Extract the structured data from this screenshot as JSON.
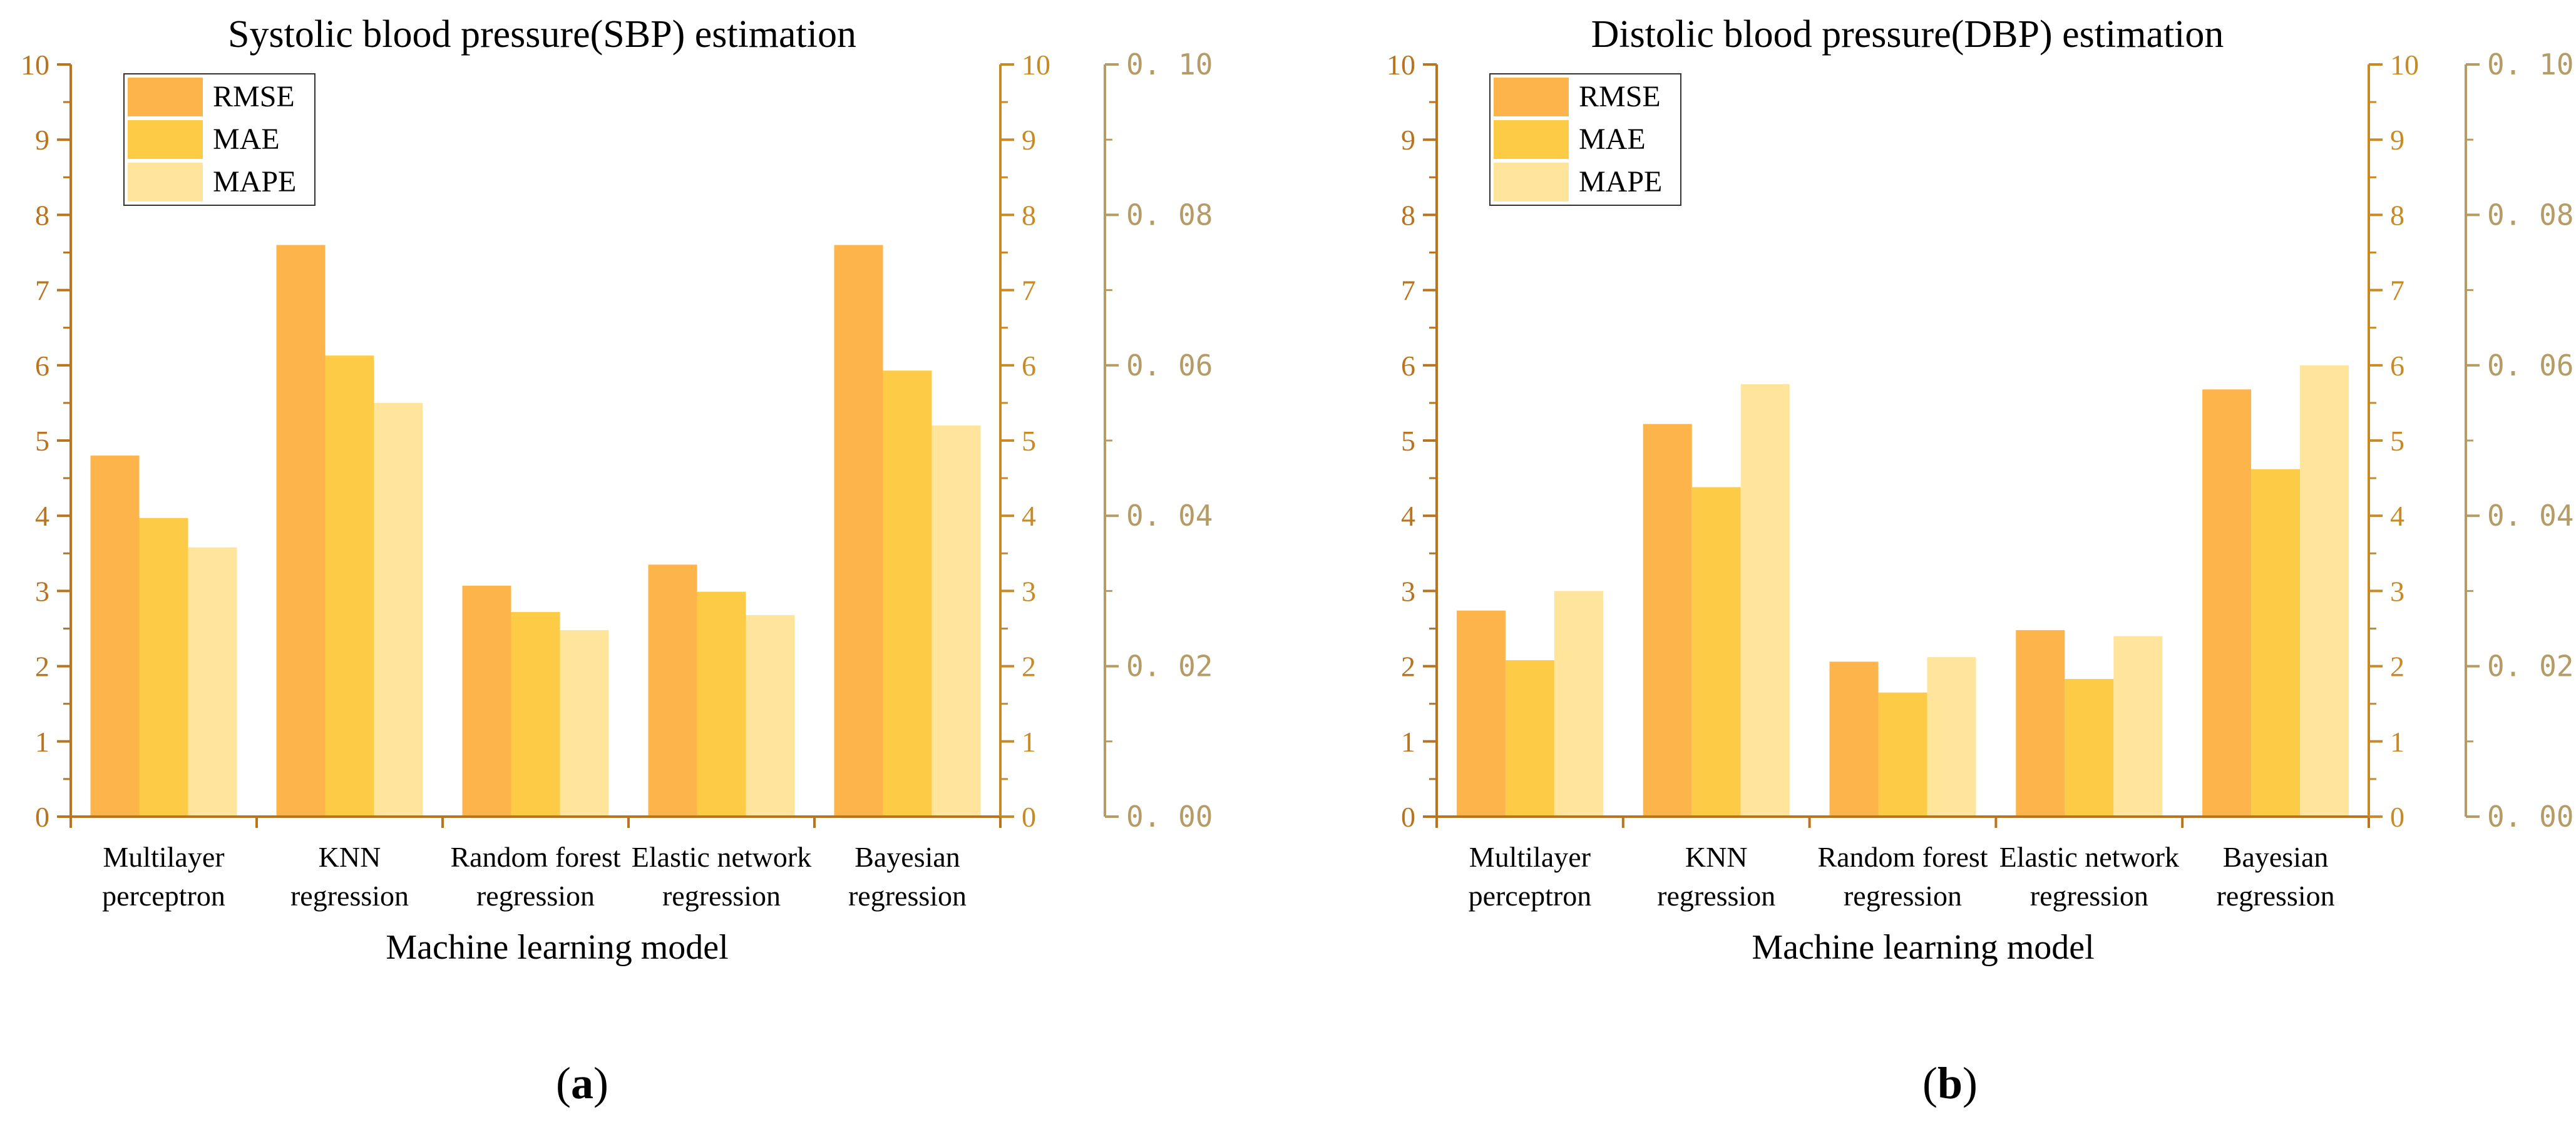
{
  "colors": {
    "rmse": "#FDB44A",
    "mae": "#FECB47",
    "mape": "#FFE49B",
    "axis_left": "#B8741E",
    "axis_mid": "#C88A24",
    "axis_right": "#B59B66",
    "text": "#000000"
  },
  "chart_data": [
    {
      "type": "bar",
      "title": "Systolic blood pressure(SBP) estimation",
      "panel_label": "(a)",
      "panel_label_text": "a",
      "xlabel": "Machine learning model",
      "ylabel": "",
      "categories": [
        [
          "Multilayer",
          "perceptron"
        ],
        [
          "KNN",
          "regression"
        ],
        [
          "Random forest",
          "regression"
        ],
        [
          "Elastic network",
          "regression"
        ],
        [
          "Bayesian",
          "regression"
        ]
      ],
      "series": [
        {
          "name": "RMSE",
          "axis": "left",
          "values": [
            4.8,
            7.6,
            3.07,
            3.35,
            7.6
          ]
        },
        {
          "name": "MAE",
          "axis": "mid",
          "values": [
            3.97,
            6.13,
            2.72,
            2.99,
            5.93
          ]
        },
        {
          "name": "MAPE",
          "axis": "right",
          "values": [
            0.0358,
            0.055,
            0.0248,
            0.0268,
            0.052
          ]
        }
      ],
      "axes": {
        "left": {
          "ylim": [
            0,
            10
          ],
          "ticks": [
            "0",
            "1",
            "2",
            "3",
            "4",
            "5",
            "6",
            "7",
            "8",
            "9",
            "10"
          ]
        },
        "mid": {
          "ylim": [
            0,
            10
          ],
          "ticks": [
            "0",
            "1",
            "2",
            "3",
            "4",
            "5",
            "6",
            "7",
            "8",
            "9",
            "10"
          ]
        },
        "right": {
          "ylim": [
            0,
            0.1
          ],
          "ticks": [
            "0. 00",
            "0. 02",
            "0. 04",
            "0. 06",
            "0. 08",
            "0. 10"
          ]
        }
      },
      "legend": {
        "position": "top-left",
        "entries": [
          "RMSE",
          "MAE",
          "MAPE"
        ]
      }
    },
    {
      "type": "bar",
      "title": "Distolic blood pressure(DBP) estimation",
      "panel_label": "(b)",
      "panel_label_text": "b",
      "xlabel": "Machine learning model",
      "ylabel": "",
      "categories": [
        [
          "Multilayer",
          "perceptron"
        ],
        [
          "KNN",
          "regression"
        ],
        [
          "Random forest",
          "regression"
        ],
        [
          "Elastic network",
          "regression"
        ],
        [
          "Bayesian",
          "regression"
        ]
      ],
      "series": [
        {
          "name": "RMSE",
          "axis": "left",
          "values": [
            2.74,
            5.22,
            2.06,
            2.48,
            5.68
          ]
        },
        {
          "name": "MAE",
          "axis": "mid",
          "values": [
            2.08,
            4.38,
            1.65,
            1.83,
            4.62
          ]
        },
        {
          "name": "MAPE",
          "axis": "right",
          "values": [
            0.03,
            0.0575,
            0.0212,
            0.024,
            0.06
          ]
        }
      ],
      "axes": {
        "left": {
          "ylim": [
            0,
            10
          ],
          "ticks": [
            "0",
            "1",
            "2",
            "3",
            "4",
            "5",
            "6",
            "7",
            "8",
            "9",
            "10"
          ]
        },
        "mid": {
          "ylim": [
            0,
            10
          ],
          "ticks": [
            "0",
            "1",
            "2",
            "3",
            "4",
            "5",
            "6",
            "7",
            "8",
            "9",
            "10"
          ]
        },
        "right": {
          "ylim": [
            0,
            0.1
          ],
          "ticks": [
            "0. 00",
            "0. 02",
            "0. 04",
            "0. 06",
            "0. 08",
            "0. 10"
          ]
        }
      },
      "legend": {
        "position": "top-left",
        "entries": [
          "RMSE",
          "MAE",
          "MAPE"
        ]
      }
    }
  ]
}
